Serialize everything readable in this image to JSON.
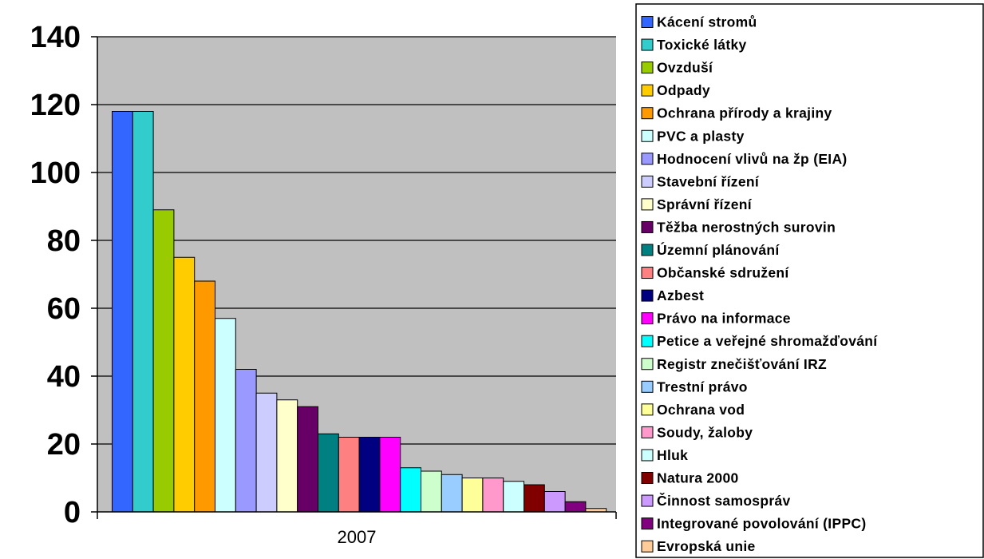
{
  "chart_data": {
    "type": "bar",
    "title": "",
    "xlabel": "",
    "ylabel": "",
    "categories": [
      "2007"
    ],
    "ylim": [
      0,
      140
    ],
    "yticks": [
      0,
      20,
      40,
      60,
      80,
      100,
      120,
      140
    ],
    "grid": true,
    "legend_position": "right",
    "plot_background": "#c0c0c0",
    "series": [
      {
        "name": "Kácení stromů",
        "value": 118,
        "color": "#3366ff"
      },
      {
        "name": "Toxické látky",
        "value": 118,
        "color": "#33cccc"
      },
      {
        "name": "Ovzduší",
        "value": 89,
        "color": "#99cc00"
      },
      {
        "name": "Odpady",
        "value": 75,
        "color": "#ffcc00"
      },
      {
        "name": "Ochrana přírody a krajiny",
        "value": 68,
        "color": "#ff9900"
      },
      {
        "name": "PVC a plasty",
        "value": 57,
        "color": "#ccffff"
      },
      {
        "name": "Hodnocení vlivů na žp (EIA)",
        "value": 42,
        "color": "#9999ff"
      },
      {
        "name": "Stavební řízení",
        "value": 35,
        "color": "#ccccff"
      },
      {
        "name": "Správní řízení",
        "value": 33,
        "color": "#ffffcc"
      },
      {
        "name": "Těžba nerostných surovin",
        "value": 31,
        "color": "#660066"
      },
      {
        "name": "Územní plánování",
        "value": 23,
        "color": "#008080"
      },
      {
        "name": "Občanské sdružení",
        "value": 22,
        "color": "#ff8080"
      },
      {
        "name": "Azbest",
        "value": 22,
        "color": "#000080"
      },
      {
        "name": "Právo na informace",
        "value": 22,
        "color": "#ff00ff"
      },
      {
        "name": "Petice a veřejné shromažďování",
        "value": 13,
        "color": "#00ffff"
      },
      {
        "name": "Registr znečišťování IRZ",
        "value": 12,
        "color": "#ccffcc"
      },
      {
        "name": "Trestní právo",
        "value": 11,
        "color": "#99ccff"
      },
      {
        "name": "Ochrana vod",
        "value": 10,
        "color": "#ffff99"
      },
      {
        "name": "Soudy, žaloby",
        "value": 10,
        "color": "#ff99cc"
      },
      {
        "name": "Hluk",
        "value": 9,
        "color": "#ccffff"
      },
      {
        "name": "Natura 2000",
        "value": 8,
        "color": "#800000"
      },
      {
        "name": "Činnost samospráv",
        "value": 6,
        "color": "#cc99ff"
      },
      {
        "name": "Integrované povolování (IPPC)",
        "value": 3,
        "color": "#800080"
      },
      {
        "name": "Evropská unie",
        "value": 1,
        "color": "#ffcc99"
      }
    ]
  }
}
